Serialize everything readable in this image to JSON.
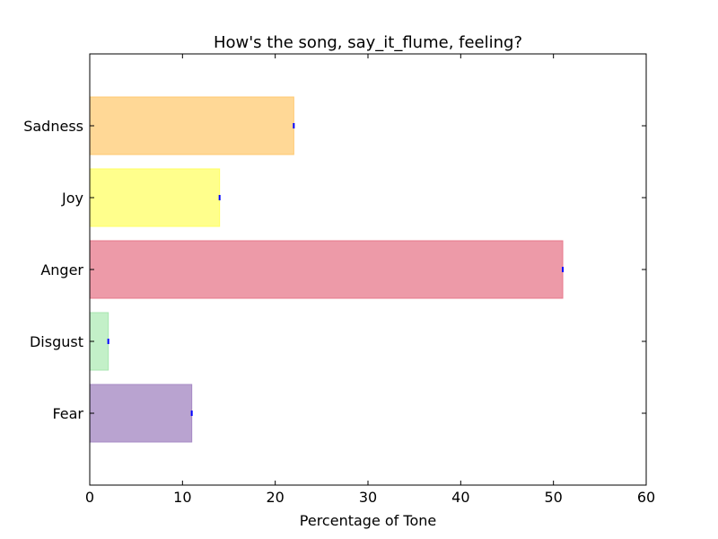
{
  "chart_data": {
    "type": "bar",
    "orientation": "horizontal",
    "title": "How's the song, say_it_flume, feeling?",
    "xlabel": "Percentage of Tone",
    "ylabel": "",
    "xlim": [
      0,
      60
    ],
    "xticks": [
      0,
      10,
      20,
      30,
      40,
      50,
      60
    ],
    "categories": [
      "Fear",
      "Disgust",
      "Anger",
      "Joy",
      "Sadness"
    ],
    "values": [
      11,
      2,
      51,
      14,
      22
    ],
    "colors": [
      "#b9a3d0",
      "#c3f0c8",
      "#ed9aa8",
      "#ffff8c",
      "#ffd896"
    ],
    "edge_colors": [
      "#a689c4",
      "#a8e6b0",
      "#e8788b",
      "#ffff66",
      "#ffc870"
    ],
    "error_marker_color": "#0000ff",
    "grid": false
  }
}
